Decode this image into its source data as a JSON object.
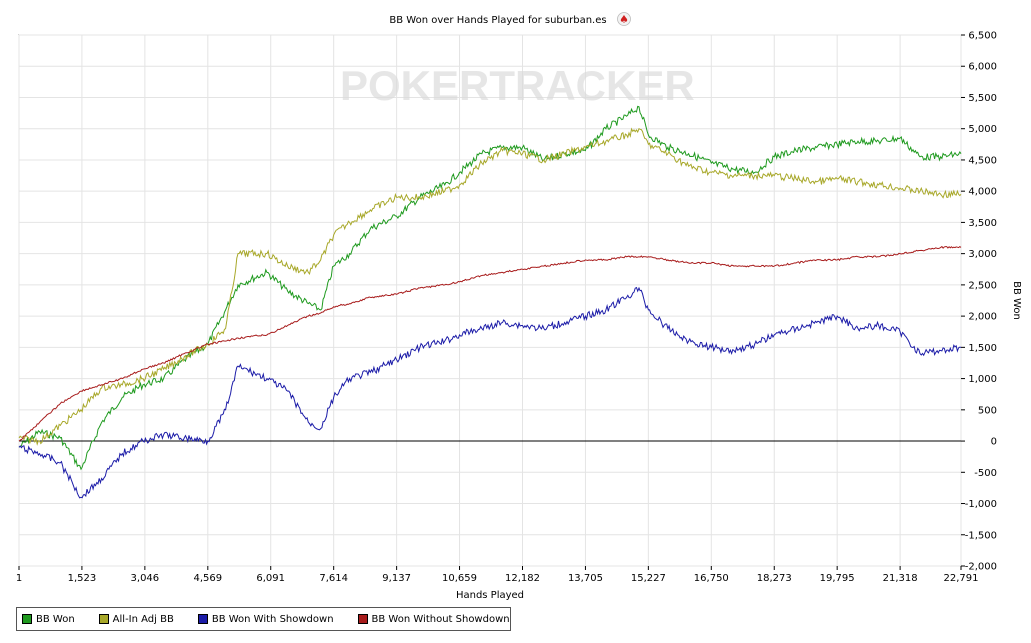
{
  "chart_data": {
    "type": "line",
    "title": "BB Won over Hands Played for suburban.es",
    "title_icon": "poker-spade-icon",
    "watermark": "POKERTRACKER",
    "xlabel": "Hands Played",
    "ylabel": "BB Won",
    "xlim": [
      1,
      22791
    ],
    "ylim": [
      -2000,
      6500
    ],
    "x_ticks": [
      1,
      1523,
      3046,
      4569,
      6091,
      7614,
      9137,
      10659,
      12182,
      13705,
      15227,
      16750,
      18273,
      19795,
      21318,
      22791
    ],
    "x_tick_labels": [
      "1",
      "1,523",
      "3,046",
      "4,569",
      "6,091",
      "7,614",
      "9,137",
      "10,659",
      "12,182",
      "13,705",
      "15,227",
      "16,750",
      "18,273",
      "19,795",
      "21,318",
      "22,791"
    ],
    "y_ticks": [
      -2000,
      -1500,
      -1000,
      -500,
      0,
      500,
      1000,
      1500,
      2000,
      2500,
      3000,
      3500,
      4000,
      4500,
      5000,
      5500,
      6000,
      6500
    ],
    "y_tick_labels": [
      "-2,000",
      "-1,500",
      "-1,000",
      "-500",
      "0",
      "500",
      "1,000",
      "1,500",
      "2,000",
      "2,500",
      "3,000",
      "3,500",
      "4,000",
      "4,500",
      "5,000",
      "5,500",
      "6,000",
      "6,500"
    ],
    "grid": true,
    "legend_position": "bottom-left",
    "x": [
      1,
      500,
      1000,
      1500,
      2000,
      2500,
      3000,
      3500,
      4000,
      4569,
      5000,
      5300,
      6000,
      6500,
      7000,
      7300,
      7614,
      8000,
      8500,
      9137,
      9700,
      10300,
      10659,
      11200,
      11700,
      12182,
      12700,
      13200,
      13705,
      14200,
      14700,
      15000,
      15227,
      15700,
      16200,
      16750,
      17300,
      17800,
      18273,
      18800,
      19300,
      19795,
      20300,
      20800,
      21318,
      21800,
      22300,
      22791
    ],
    "series": [
      {
        "name": "BB Won",
        "color": "#1f9a1f",
        "values": [
          -100,
          150,
          50,
          -450,
          300,
          700,
          900,
          1000,
          1300,
          1550,
          2100,
          2500,
          2700,
          2400,
          2200,
          2100,
          2800,
          3000,
          3400,
          3600,
          3900,
          4100,
          4300,
          4600,
          4700,
          4700,
          4500,
          4600,
          4650,
          5000,
          5200,
          5350,
          4900,
          4700,
          4600,
          4450,
          4350,
          4300,
          4550,
          4650,
          4700,
          4750,
          4800,
          4800,
          4850,
          4550,
          4550,
          4600
        ]
      },
      {
        "name": "All-In Adj BB",
        "color": "#a8a82a",
        "values": [
          50,
          0,
          250,
          500,
          850,
          900,
          1000,
          1150,
          1350,
          1550,
          1800,
          3000,
          3000,
          2800,
          2700,
          2900,
          3300,
          3500,
          3700,
          3900,
          3900,
          4000,
          4100,
          4450,
          4650,
          4600,
          4500,
          4600,
          4700,
          4800,
          4900,
          5000,
          4750,
          4600,
          4400,
          4300,
          4250,
          4250,
          4250,
          4200,
          4150,
          4200,
          4150,
          4100,
          4050,
          4000,
          3950,
          3950
        ]
      },
      {
        "name": "BB Won With Showdown",
        "color": "#1c1ca8",
        "values": [
          -100,
          -200,
          -350,
          -900,
          -600,
          -200,
          0,
          100,
          50,
          0,
          500,
          1200,
          1000,
          800,
          300,
          200,
          700,
          1000,
          1100,
          1300,
          1500,
          1600,
          1700,
          1800,
          1900,
          1850,
          1800,
          1900,
          2000,
          2100,
          2300,
          2450,
          2100,
          1800,
          1600,
          1500,
          1450,
          1550,
          1700,
          1800,
          1900,
          2000,
          1800,
          1850,
          1750,
          1400,
          1450,
          1500
        ]
      },
      {
        "name": "BB Won Without Showdown",
        "color": "#a81c1c",
        "values": [
          0,
          300,
          600,
          800,
          900,
          1000,
          1150,
          1250,
          1400,
          1550,
          1600,
          1650,
          1700,
          1850,
          2000,
          2050,
          2150,
          2200,
          2300,
          2350,
          2450,
          2500,
          2550,
          2650,
          2700,
          2750,
          2800,
          2850,
          2900,
          2900,
          2950,
          2950,
          2950,
          2900,
          2850,
          2850,
          2800,
          2800,
          2800,
          2850,
          2900,
          2900,
          2950,
          2950,
          3000,
          3050,
          3100,
          3100
        ]
      }
    ]
  }
}
